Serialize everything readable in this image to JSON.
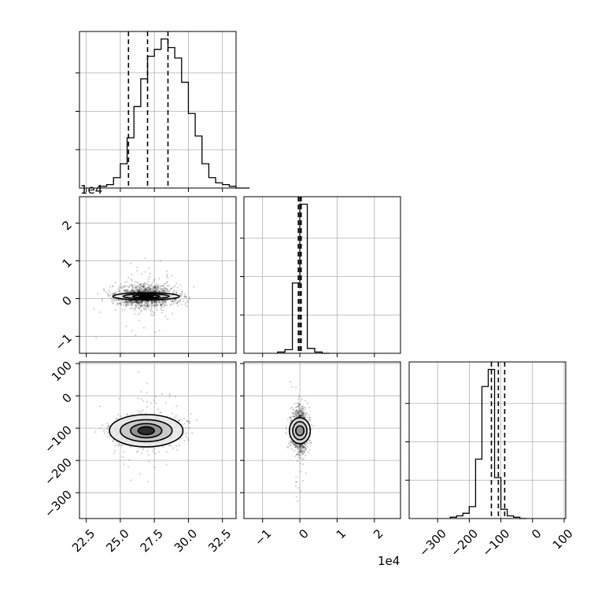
{
  "chart_data": {
    "type": "corner",
    "grid": true,
    "panels": [
      {
        "id": "hist-0",
        "row": 0,
        "col": 0,
        "kind": "histogram",
        "xlim": [
          22.0,
          33.5
        ],
        "bins": {
          "start": 23.5,
          "width": 0.5,
          "counts": [
            1,
            2,
            6,
            14,
            29,
            47,
            63,
            76,
            80,
            86,
            81,
            75,
            61,
            43,
            30,
            14,
            6,
            3,
            2,
            1,
            0,
            0
          ]
        },
        "quantiles": [
          25.6,
          27.0,
          28.5
        ]
      },
      {
        "id": "scatter-1-0",
        "row": 1,
        "col": 0,
        "kind": "scatter-contour",
        "xlim": [
          22.0,
          33.5
        ],
        "ylim": [
          -14500,
          27000
        ],
        "yticks": [
          -10000,
          0,
          10000,
          20000
        ],
        "yticklabels": [
          "−1",
          "0",
          "1",
          "2"
        ],
        "y_offset_label": "1e4",
        "center": [
          26.9,
          600
        ],
        "spread": [
          1.15,
          1500
        ],
        "contours": [
          [
            2.45,
            950
          ],
          [
            1.7,
            620
          ],
          [
            1.0,
            360
          ],
          [
            0.5,
            190
          ]
        ]
      },
      {
        "id": "hist-1",
        "row": 1,
        "col": 1,
        "kind": "histogram",
        "xlim": [
          -15000,
          27000
        ],
        "bins": {
          "start": -6000,
          "width": 2000,
          "counts": [
            1,
            3,
            58,
            123,
            4,
            1,
            0
          ]
        },
        "quantiles": [
          -400,
          0,
          350
        ]
      },
      {
        "id": "scatter-2-0",
        "row": 2,
        "col": 0,
        "kind": "scatter-contour",
        "xlim": [
          22.0,
          33.5
        ],
        "ylim": [
          -380,
          105
        ],
        "yticks": [
          -300,
          -200,
          -100,
          0,
          100
        ],
        "yticklabels": [
          "−300",
          "−200",
          "−100",
          "0",
          "100"
        ],
        "center": [
          26.9,
          -108
        ],
        "spread": [
          1.2,
          22
        ],
        "contours": [
          [
            2.7,
            50
          ],
          [
            1.9,
            34
          ],
          [
            1.15,
            22
          ],
          [
            0.6,
            12
          ]
        ]
      },
      {
        "id": "scatter-2-1",
        "row": 2,
        "col": 1,
        "kind": "scatter-contour",
        "xlim": [
          -15000,
          27000
        ],
        "ylim": [
          -380,
          105
        ],
        "center": [
          0,
          -108
        ],
        "spread": [
          1100,
          30
        ],
        "contours": [
          [
            2800,
            40
          ],
          [
            1900,
            28
          ],
          [
            1100,
            15
          ]
        ]
      },
      {
        "id": "hist-2",
        "row": 2,
        "col": 2,
        "kind": "histogram",
        "xlim": [
          -390,
          105
        ],
        "xticks": [
          -300,
          -200,
          -100,
          0,
          100
        ],
        "xticklabels": [
          "−300",
          "−200",
          "−100",
          "0",
          "100"
        ],
        "bins": {
          "start": -260,
          "width": 20,
          "counts": [
            1,
            2,
            4,
            9,
            45,
            100,
            113,
            31,
            7,
            2,
            1,
            0
          ]
        },
        "quantiles": [
          -130,
          -108,
          -88
        ]
      }
    ],
    "bottom_axes": [
      {
        "col": 0,
        "xticks": [
          22.5,
          25.0,
          27.5,
          30.0,
          32.5
        ],
        "xticklabels": [
          "22.5",
          "25.0",
          "27.5",
          "30.0",
          "32.5"
        ]
      },
      {
        "col": 1,
        "xticks": [
          -10000,
          0,
          10000,
          20000
        ],
        "xticklabels": [
          "−1",
          "0",
          "1",
          "2"
        ],
        "x_offset_label": "1e4"
      }
    ],
    "top_offset_label": "1e4",
    "colors": {
      "line": "#000000",
      "grid": "#b0b0b0",
      "points": "#000000"
    }
  }
}
